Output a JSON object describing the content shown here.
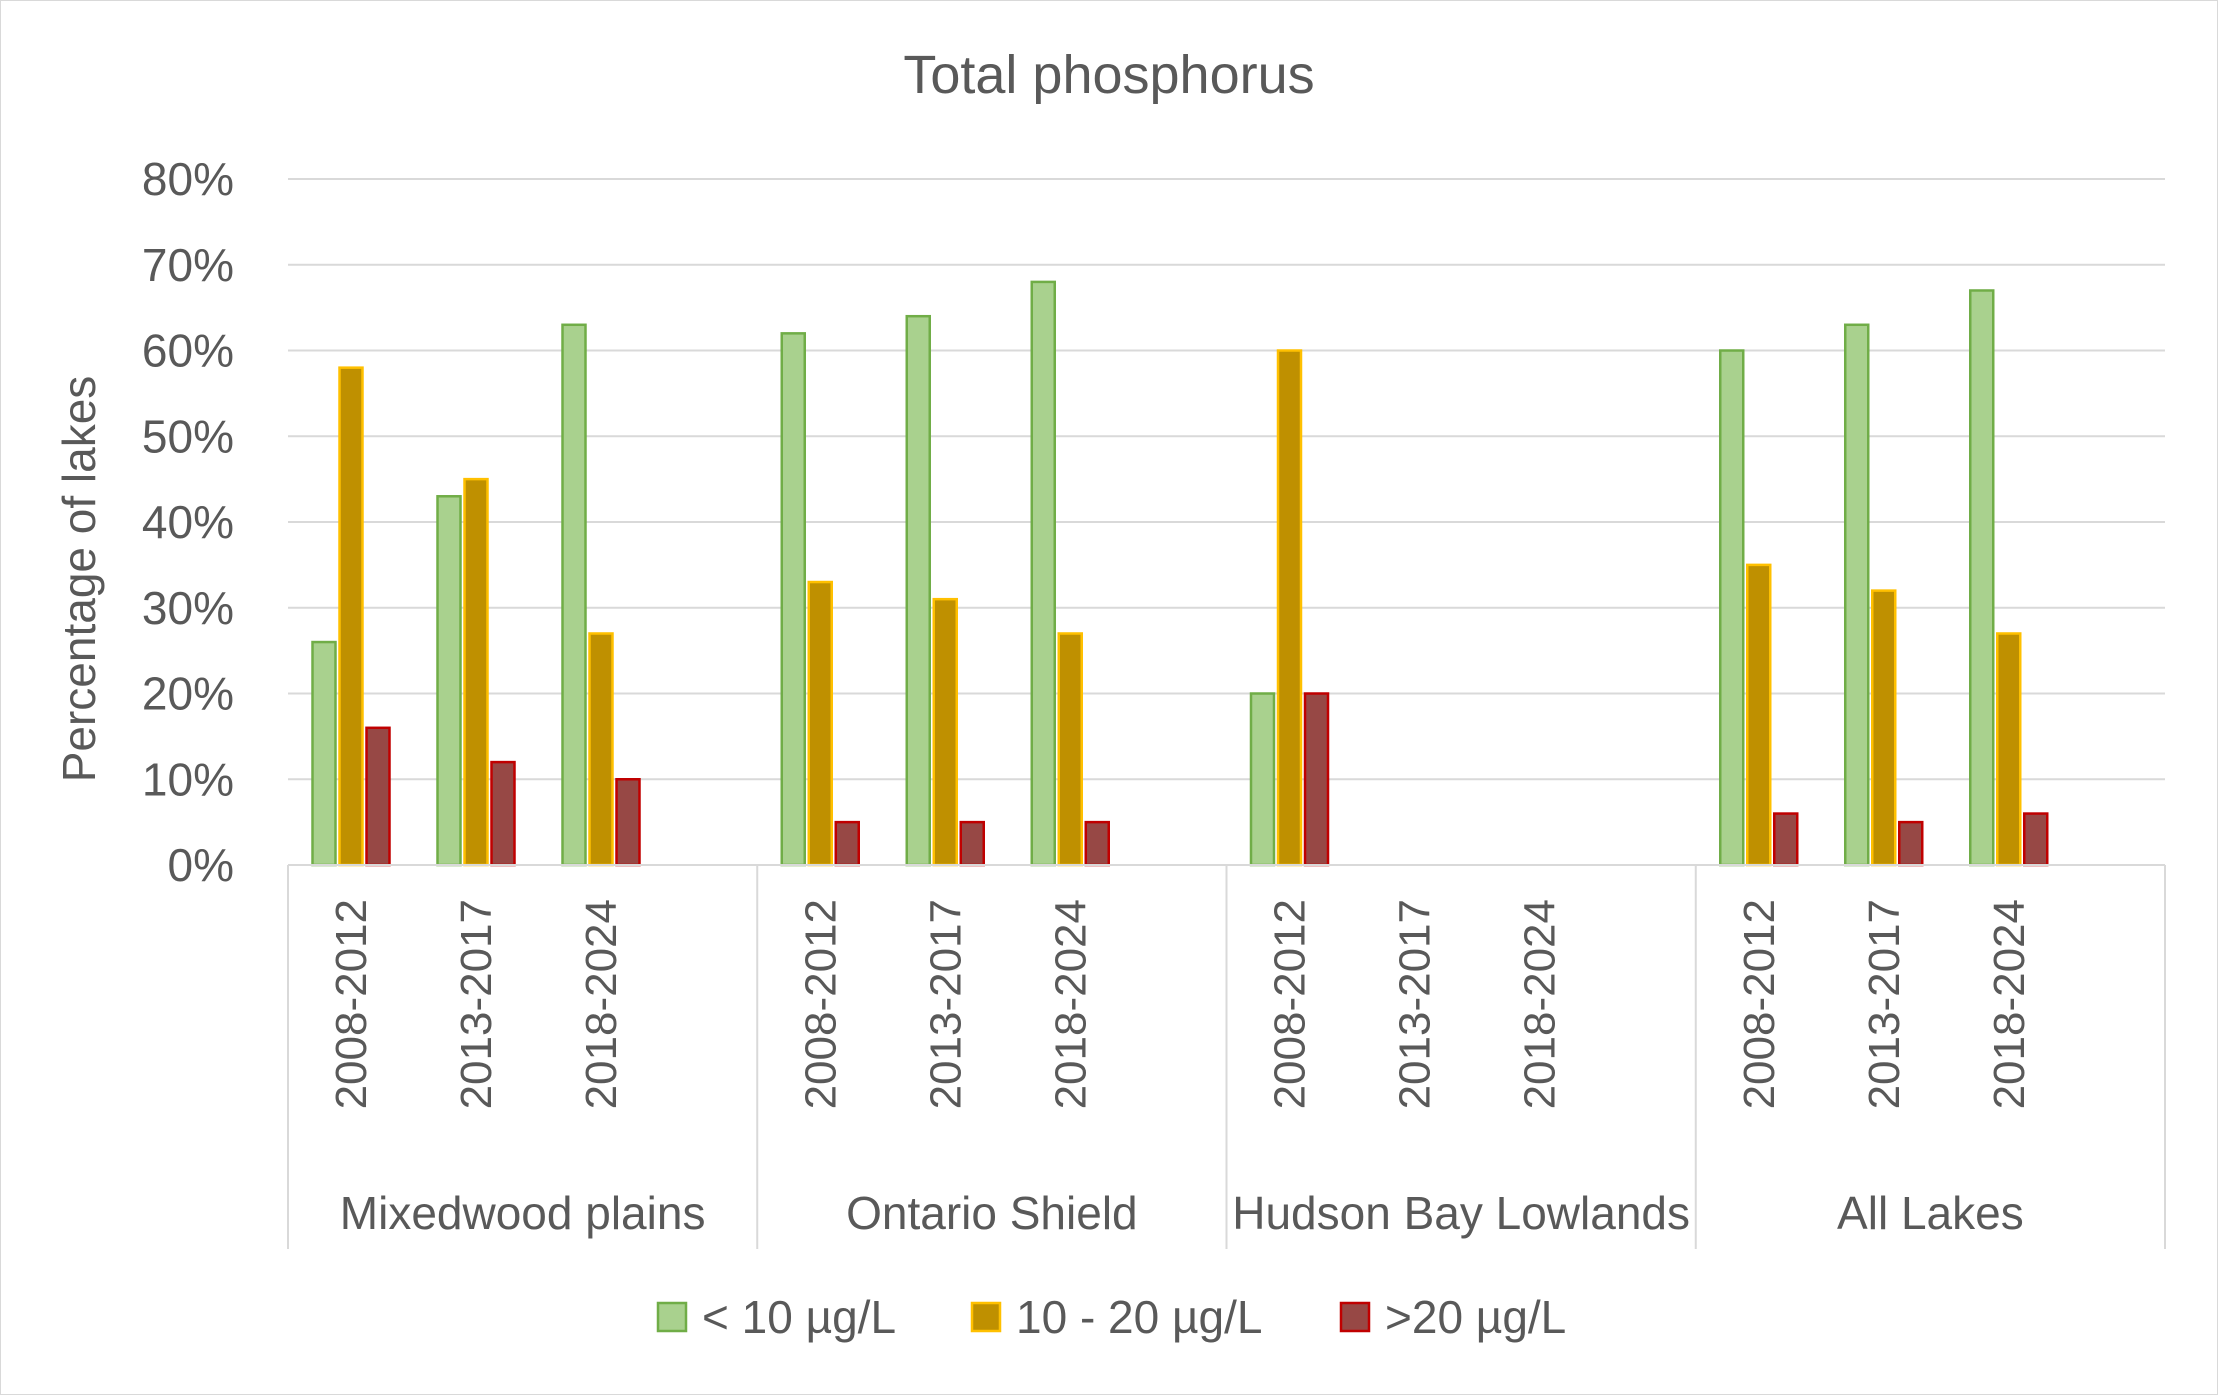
{
  "chart_data": {
    "type": "bar",
    "title": "Total phosphorus",
    "xlabel": "",
    "ylabel": "Percentage of lakes",
    "ylim": [
      0,
      0.8
    ],
    "yticks": [
      0,
      0.1,
      0.2,
      0.3,
      0.4,
      0.5,
      0.6,
      0.7,
      0.8
    ],
    "ytick_labels": [
      "0%",
      "10%",
      "20%",
      "30%",
      "40%",
      "50%",
      "60%",
      "70%",
      "80%"
    ],
    "grid": true,
    "legend_position": "bottom",
    "groups": [
      {
        "name": "Mixedwood plains",
        "categories": [
          "2008-2012",
          "2013-2017",
          "2018-2024"
        ]
      },
      {
        "name": "Ontario Shield",
        "categories": [
          "2008-2012",
          "2013-2017",
          "2018-2024"
        ]
      },
      {
        "name": "Hudson Bay Lowlands",
        "categories": [
          "2008-2012",
          "2013-2017",
          "2018-2024"
        ]
      },
      {
        "name": "All Lakes",
        "categories": [
          "2008-2012",
          "2013-2017",
          "2018-2024"
        ]
      }
    ],
    "series": [
      {
        "name": "< 10 µg/L",
        "fill": "#a9d18e",
        "stroke": "#70ad47",
        "values": [
          0.26,
          0.43,
          0.63,
          0.62,
          0.64,
          0.68,
          0.2,
          null,
          null,
          0.6,
          0.63,
          0.67
        ]
      },
      {
        "name": "10 - 20 µg/L",
        "fill": "#bf9000",
        "stroke": "#ffc000",
        "values": [
          0.58,
          0.45,
          0.27,
          0.33,
          0.31,
          0.27,
          0.6,
          null,
          null,
          0.35,
          0.32,
          0.27
        ]
      },
      {
        "name": ">20 µg/L",
        "fill": "#974845",
        "stroke": "#c00000",
        "values": [
          0.16,
          0.12,
          0.1,
          0.05,
          0.05,
          0.05,
          0.2,
          null,
          null,
          0.06,
          0.05,
          0.06
        ]
      }
    ]
  }
}
